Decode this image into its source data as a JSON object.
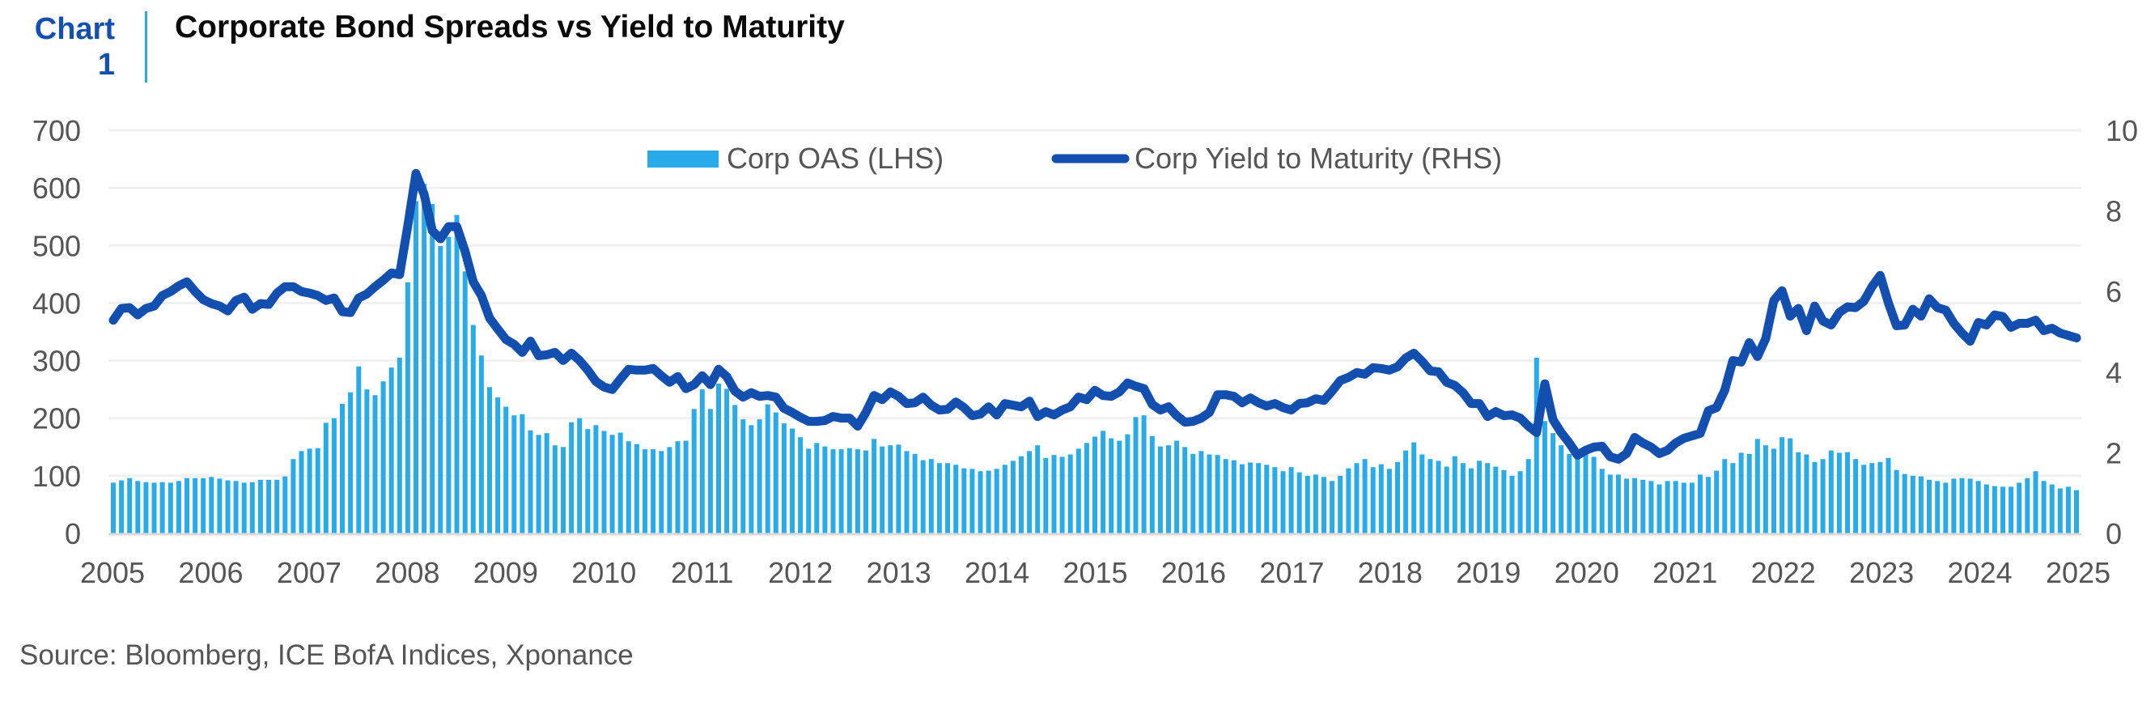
{
  "header": {
    "chart_label_line1": "Chart",
    "chart_label_line2": "1",
    "title": "Corporate Bond Spreads vs Yield to Maturity"
  },
  "source": "Source: Bloomberg, ICE BofA Indices, Xponance",
  "colors": {
    "bar": "#29abea",
    "line": "#134fae",
    "grid": "#f0f0f0",
    "axis_text": "#555555",
    "accent": "#1450b0",
    "separator": "#29abe2"
  },
  "chart_data": {
    "type": "bar+line",
    "title": "Corporate Bond Spreads vs Yield to Maturity",
    "frequency": "monthly",
    "start": "2005-01",
    "xlabel": "",
    "x_tick_labels": [
      "2005",
      "2006",
      "2007",
      "2008",
      "2009",
      "2010",
      "2011",
      "2012",
      "2013",
      "2014",
      "2015",
      "2016",
      "2017",
      "2018",
      "2019",
      "2020",
      "2021",
      "2022",
      "2023",
      "2024",
      "2025"
    ],
    "left_axis": {
      "label": "",
      "ylim": [
        0,
        700
      ],
      "ticks": [
        "0",
        "100",
        "200",
        "300",
        "400",
        "500",
        "600",
        "700"
      ]
    },
    "right_axis": {
      "label": "",
      "ylim": [
        0,
        10
      ],
      "ticks": [
        "0",
        "2",
        "4",
        "6",
        "8",
        "10"
      ]
    },
    "grid": true,
    "legend_position": "top-center",
    "series": [
      {
        "name": "Corp OAS (LHS)",
        "type": "bar",
        "axis": "left",
        "values": [
          88,
          92,
          96,
          91,
          89,
          88,
          89,
          88,
          91,
          96,
          96,
          96,
          98,
          95,
          92,
          91,
          88,
          89,
          93,
          93,
          93,
          99,
          129,
          143,
          147,
          148,
          192,
          200,
          225,
          245,
          290,
          250,
          240,
          264,
          288,
          305,
          436,
          577,
          607,
          572,
          499,
          515,
          553,
          455,
          362,
          309,
          254,
          236,
          220,
          205,
          207,
          179,
          171,
          174,
          153,
          150,
          193,
          200,
          181,
          188,
          178,
          171,
          175,
          160,
          155,
          146,
          146,
          143,
          150,
          160,
          161,
          216,
          250,
          216,
          260,
          251,
          223,
          198,
          188,
          198,
          224,
          210,
          191,
          182,
          167,
          147,
          157,
          151,
          146,
          146,
          148,
          146,
          144,
          164,
          151,
          153,
          154,
          143,
          138,
          127,
          129,
          122,
          122,
          119,
          113,
          112,
          108,
          109,
          112,
          119,
          126,
          134,
          143,
          153,
          131,
          136,
          133,
          137,
          147,
          157,
          168,
          178,
          165,
          161,
          172,
          202,
          205,
          169,
          151,
          153,
          161,
          150,
          138,
          143,
          137,
          136,
          129,
          127,
          120,
          123,
          122,
          119,
          115,
          108,
          115,
          106,
          100,
          102,
          98,
          91,
          100,
          113,
          122,
          129,
          115,
          120,
          112,
          124,
          144,
          158,
          137,
          129,
          126,
          116,
          134,
          122,
          113,
          126,
          122,
          116,
          110,
          100,
          108,
          129,
          305,
          195,
          174,
          153,
          138,
          141,
          147,
          133,
          112,
          102,
          102,
          95,
          96,
          93,
          91,
          85,
          91,
          91,
          88,
          88,
          102,
          98,
          109,
          129,
          122,
          140,
          138,
          164,
          153,
          147,
          167,
          165,
          141,
          137,
          124,
          129,
          144,
          140,
          141,
          129,
          119,
          122,
          124,
          131,
          110,
          103,
          100,
          99,
          93,
          91,
          88,
          95,
          96,
          95,
          91,
          85,
          82,
          81,
          81,
          88,
          96,
          108,
          91,
          85,
          78,
          81,
          75
        ]
      },
      {
        "name": "Corp Yield to Maturity (RHS)",
        "type": "line",
        "axis": "right",
        "values": [
          5.29,
          5.58,
          5.6,
          5.42,
          5.58,
          5.64,
          5.9,
          6.0,
          6.14,
          6.24,
          6.0,
          5.8,
          5.7,
          5.64,
          5.52,
          5.78,
          5.86,
          5.56,
          5.7,
          5.68,
          5.96,
          6.12,
          6.12,
          6.0,
          5.96,
          5.9,
          5.78,
          5.84,
          5.5,
          5.48,
          5.84,
          5.94,
          6.12,
          6.28,
          6.46,
          6.42,
          7.63,
          8.93,
          8.41,
          7.51,
          7.31,
          7.61,
          7.61,
          7.0,
          6.24,
          5.9,
          5.34,
          5.07,
          4.81,
          4.69,
          4.49,
          4.77,
          4.41,
          4.43,
          4.49,
          4.29,
          4.47,
          4.29,
          4.05,
          3.77,
          3.63,
          3.57,
          3.83,
          4.07,
          4.05,
          4.05,
          4.09,
          3.91,
          3.75,
          3.89,
          3.59,
          3.69,
          3.91,
          3.69,
          4.07,
          3.89,
          3.53,
          3.38,
          3.49,
          3.4,
          3.42,
          3.38,
          3.1,
          3.0,
          2.88,
          2.78,
          2.78,
          2.8,
          2.9,
          2.86,
          2.86,
          2.66,
          3.0,
          3.42,
          3.32,
          3.51,
          3.4,
          3.22,
          3.24,
          3.38,
          3.18,
          3.06,
          3.08,
          3.26,
          3.12,
          2.92,
          2.96,
          3.14,
          2.94,
          3.22,
          3.18,
          3.14,
          3.28,
          2.9,
          3.02,
          2.94,
          3.06,
          3.14,
          3.38,
          3.32,
          3.55,
          3.42,
          3.4,
          3.51,
          3.73,
          3.65,
          3.59,
          3.2,
          3.06,
          3.14,
          2.92,
          2.76,
          2.78,
          2.86,
          3.0,
          3.44,
          3.44,
          3.4,
          3.24,
          3.36,
          3.24,
          3.16,
          3.22,
          3.12,
          3.06,
          3.22,
          3.24,
          3.34,
          3.3,
          3.53,
          3.79,
          3.87,
          3.99,
          3.95,
          4.11,
          4.09,
          4.05,
          4.13,
          4.35,
          4.47,
          4.27,
          4.03,
          4.01,
          3.75,
          3.67,
          3.49,
          3.22,
          3.22,
          2.9,
          3.02,
          2.92,
          2.94,
          2.86,
          2.66,
          2.5,
          3.71,
          2.82,
          2.5,
          2.24,
          1.94,
          2.06,
          2.14,
          2.16,
          1.9,
          1.84,
          1.98,
          2.38,
          2.24,
          2.14,
          1.98,
          2.06,
          2.24,
          2.36,
          2.42,
          2.48,
          3.04,
          3.12,
          3.55,
          4.29,
          4.25,
          4.73,
          4.39,
          4.83,
          5.78,
          6.02,
          5.39,
          5.58,
          5.03,
          5.64,
          5.27,
          5.17,
          5.48,
          5.62,
          5.6,
          5.76,
          6.12,
          6.4,
          5.72,
          5.15,
          5.17,
          5.56,
          5.39,
          5.82,
          5.6,
          5.54,
          5.21,
          4.97,
          4.77,
          5.23,
          5.17,
          5.42,
          5.38,
          5.11,
          5.21,
          5.21,
          5.29,
          5.03,
          5.09,
          4.97,
          4.91,
          4.85
        ]
      }
    ]
  }
}
